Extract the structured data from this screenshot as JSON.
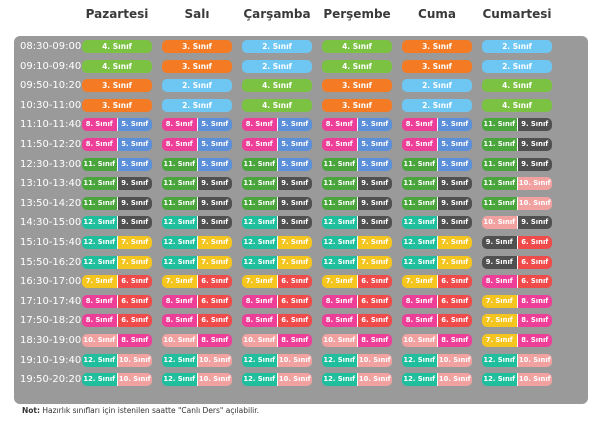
{
  "days": [
    "Pazartesi",
    "Salı",
    "Çarşamba",
    "Perşembe",
    "Cuma",
    "Cumartesi"
  ],
  "colors": {
    "2": "#6ec6f2",
    "3": "#f47a24",
    "4": "#7cc242",
    "5": "#5b8fd9",
    "6": "#ef4b4b",
    "7": "#f5c51f",
    "8": "#ee3f98",
    "9": "#505050",
    "10": "#f2a1a1",
    "11": "#4aa53c",
    "12": "#1fbf9e"
  },
  "rows": [
    {
      "time": "08:30-09:00",
      "cells": [
        [
          "4. Sınıf"
        ],
        [
          "3. Sınıf"
        ],
        [
          "2. Sınıf"
        ],
        [
          "4. Sınıf"
        ],
        [
          "3. Sınıf"
        ],
        [
          "2. Sınıf"
        ]
      ]
    },
    {
      "time": "09:10-09:40",
      "cells": [
        [
          "4. Sınıf"
        ],
        [
          "3. Sınıf"
        ],
        [
          "2. Sınıf"
        ],
        [
          "4. Sınıf"
        ],
        [
          "3. Sınıf"
        ],
        [
          "2. Sınıf"
        ]
      ]
    },
    {
      "time": "09:50-10:20",
      "cells": [
        [
          "3. Sınıf"
        ],
        [
          "2. Sınıf"
        ],
        [
          "4. Sınıf"
        ],
        [
          "3. Sınıf"
        ],
        [
          "2. Sınıf"
        ],
        [
          "4. Sınıf"
        ]
      ]
    },
    {
      "time": "10:30-11:00",
      "cells": [
        [
          "3. Sınıf"
        ],
        [
          "2. Sınıf"
        ],
        [
          "4. Sınıf"
        ],
        [
          "3. Sınıf"
        ],
        [
          "2. Sınıf"
        ],
        [
          "4. Sınıf"
        ]
      ]
    },
    {
      "time": "11:10-11:40",
      "cells": [
        [
          "8. Sınıf",
          "5. Sınıf"
        ],
        [
          "8. Sınıf",
          "5. Sınıf"
        ],
        [
          "8. Sınıf",
          "5. Sınıf"
        ],
        [
          "8. Sınıf",
          "5. Sınıf"
        ],
        [
          "8. Sınıf",
          "5. Sınıf"
        ],
        [
          "11. Sınıf",
          "9. Sınıf"
        ]
      ]
    },
    {
      "time": "11:50-12:20",
      "cells": [
        [
          "8. Sınıf",
          "5. Sınıf"
        ],
        [
          "8. Sınıf",
          "5. Sınıf"
        ],
        [
          "8. Sınıf",
          "5. Sınıf"
        ],
        [
          "8. Sınıf",
          "5. Sınıf"
        ],
        [
          "8. Sınıf",
          "5. Sınıf"
        ],
        [
          "11. Sınıf",
          "9. Sınıf"
        ]
      ]
    },
    {
      "time": "12:30-13:00",
      "cells": [
        [
          "11. Sınıf",
          "5. Sınıf"
        ],
        [
          "11. Sınıf",
          "5. Sınıf"
        ],
        [
          "11. Sınıf",
          "5. Sınıf"
        ],
        [
          "11. Sınıf",
          "5. Sınıf"
        ],
        [
          "11. Sınıf",
          "5. Sınıf"
        ],
        [
          "11. Sınıf",
          "9. Sınıf"
        ]
      ]
    },
    {
      "time": "13:10-13:40",
      "cells": [
        [
          "11. Sınıf",
          "9. Sınıf"
        ],
        [
          "11. Sınıf",
          "9. Sınıf"
        ],
        [
          "11. Sınıf",
          "9. Sınıf"
        ],
        [
          "11. Sınıf",
          "9. Sınıf"
        ],
        [
          "11. Sınıf",
          "9. Sınıf"
        ],
        [
          "11. Sınıf",
          "10. Sınıf"
        ]
      ]
    },
    {
      "time": "13:50-14:20",
      "cells": [
        [
          "11. Sınıf",
          "9. Sınıf"
        ],
        [
          "11. Sınıf",
          "9. Sınıf"
        ],
        [
          "11. Sınıf",
          "9. Sınıf"
        ],
        [
          "11. Sınıf",
          "9. Sınıf"
        ],
        [
          "11. Sınıf",
          "9. Sınıf"
        ],
        [
          "11. Sınıf",
          "10. Sınıf"
        ]
      ]
    },
    {
      "time": "14:30-15:00",
      "cells": [
        [
          "12. Sınıf",
          "9. Sınıf"
        ],
        [
          "12. Sınıf",
          "9. Sınıf"
        ],
        [
          "12. Sınıf",
          "9. Sınıf"
        ],
        [
          "12. Sınıf",
          "9. Sınıf"
        ],
        [
          "12. Sınıf",
          "9. Sınıf"
        ],
        [
          "10. Sınıf",
          "9. Sınıf"
        ]
      ]
    },
    {
      "time": "15:10-15:40",
      "cells": [
        [
          "12. Sınıf",
          "7. Sınıf"
        ],
        [
          "12. Sınıf",
          "7. Sınıf"
        ],
        [
          "12. Sınıf",
          "7. Sınıf"
        ],
        [
          "12. Sınıf",
          "7. Sınıf"
        ],
        [
          "12. Sınıf",
          "7. Sınıf"
        ],
        [
          "9. Sınıf",
          "6. Sınıf"
        ]
      ]
    },
    {
      "time": "15:50-16:20",
      "cells": [
        [
          "12. Sınıf",
          "7. Sınıf"
        ],
        [
          "12. Sınıf",
          "7. Sınıf"
        ],
        [
          "12. Sınıf",
          "7. Sınıf"
        ],
        [
          "12. Sınıf",
          "7. Sınıf"
        ],
        [
          "12. Sınıf",
          "7. Sınıf"
        ],
        [
          "9. Sınıf",
          "6. Sınıf"
        ]
      ]
    },
    {
      "time": "16:30-17:00",
      "cells": [
        [
          "7. Sınıf",
          "6. Sınıf"
        ],
        [
          "7. Sınıf",
          "6. Sınıf"
        ],
        [
          "7. Sınıf",
          "6. Sınıf"
        ],
        [
          "7. Sınıf",
          "6. Sınıf"
        ],
        [
          "7. Sınıf",
          "6. Sınıf"
        ],
        [
          "8. Sınıf",
          "6. Sınıf"
        ]
      ]
    },
    {
      "time": "17:10-17:40",
      "cells": [
        [
          "8. Sınıf",
          "6. Sınıf"
        ],
        [
          "8. Sınıf",
          "6. Sınıf"
        ],
        [
          "8. Sınıf",
          "6. Sınıf"
        ],
        [
          "8. Sınıf",
          "6. Sınıf"
        ],
        [
          "8. Sınıf",
          "6. Sınıf"
        ],
        [
          "7. Sınıf",
          "8. Sınıf"
        ]
      ]
    },
    {
      "time": "17:50-18:20",
      "cells": [
        [
          "8. Sınıf",
          "6. Sınıf"
        ],
        [
          "8. Sınıf",
          "6. Sınıf"
        ],
        [
          "8. Sınıf",
          "6. Sınıf"
        ],
        [
          "8. Sınıf",
          "6. Sınıf"
        ],
        [
          "8. Sınıf",
          "6. Sınıf"
        ],
        [
          "7. Sınıf",
          "8. Sınıf"
        ]
      ]
    },
    {
      "time": "18:30-19:00",
      "cells": [
        [
          "10. Sınıf",
          "8. Sınıf"
        ],
        [
          "10. Sınıf",
          "8. Sınıf"
        ],
        [
          "10. Sınıf",
          "8. Sınıf"
        ],
        [
          "10. Sınıf",
          "8. Sınıf"
        ],
        [
          "10. Sınıf",
          "8. Sınıf"
        ],
        [
          "7. Sınıf",
          "8. Sınıf"
        ]
      ]
    },
    {
      "time": "19:10-19:40",
      "cells": [
        [
          "12. Sınıf",
          "10. Sınıf"
        ],
        [
          "12. Sınıf",
          "10. Sınıf"
        ],
        [
          "12. Sınıf",
          "10. Sınıf"
        ],
        [
          "12. Sınıf",
          "10. Sınıf"
        ],
        [
          "12. Sınıf",
          "10. Sınıf"
        ],
        [
          "12. Sınıf",
          "10. Sınıf"
        ]
      ]
    },
    {
      "time": "19:50-20:20",
      "cells": [
        [
          "12. Sınıf",
          "10. Sınıf"
        ],
        [
          "12. Sınıf",
          "10. Sınıf"
        ],
        [
          "12. Sınıf",
          "10. Sınıf"
        ],
        [
          "12. Sınıf",
          "10. Sınıf"
        ],
        [
          "12. Sınıf",
          "10. Sınıf"
        ],
        [
          "12. Sınıf",
          "10. Sınıf"
        ]
      ]
    }
  ],
  "note": {
    "label": "Not:",
    "text": " Hazırlık sınıfları için istenilen saatte \"Canlı Ders\" açılabilir."
  }
}
